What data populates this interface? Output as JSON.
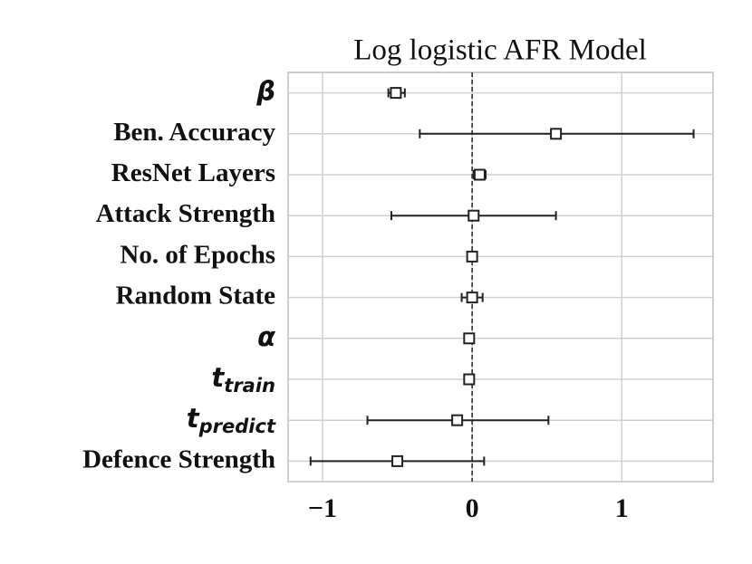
{
  "chart_data": {
    "type": "forest",
    "title": "Log logistic AFR Model",
    "categories": [
      "β",
      "Ben. Accuracy",
      "ResNet Layers",
      "Attack Strength",
      "No. of Epochs",
      "Random State",
      "α",
      "t",
      "t",
      "Defence Strength"
    ],
    "category_subscripts": [
      null,
      null,
      null,
      null,
      null,
      null,
      null,
      "train",
      "predict",
      null
    ],
    "values": [
      -0.51,
      0.56,
      0.05,
      0.01,
      0.0,
      0.0,
      -0.02,
      -0.02,
      -0.1,
      -0.5
    ],
    "ci_low": [
      -0.56,
      -0.35,
      0.01,
      -0.54,
      -0.02,
      -0.07,
      -0.04,
      -0.04,
      -0.7,
      -1.08
    ],
    "ci_high": [
      -0.45,
      1.48,
      0.09,
      0.56,
      0.02,
      0.07,
      0.0,
      0.0,
      0.51,
      0.08
    ],
    "color": "#222222",
    "reference_x": 0,
    "xlim": [
      -1.23,
      1.61
    ],
    "xticks": [
      {
        "value": -1,
        "label": "−1"
      },
      0,
      1
    ],
    "grid": true
  }
}
